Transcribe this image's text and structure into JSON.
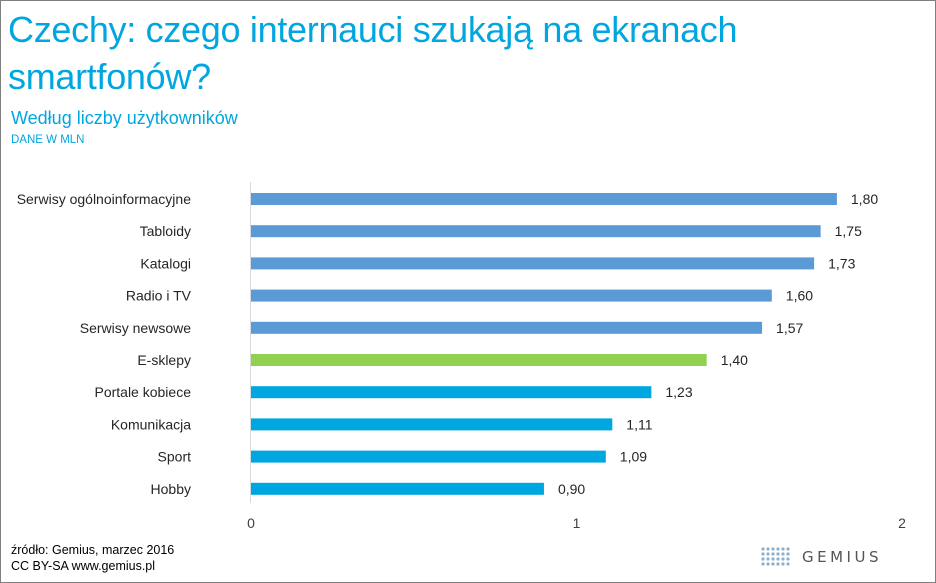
{
  "title": "Czechy: czego internauci szukają na ekranach smartfonów?",
  "subtitle": "Według liczby użytkowników",
  "units": "DANE W MLN",
  "source_line1": "źródło: Gemius, marzec 2016",
  "source_line2": "CC BY-SA www.gemius.pl",
  "logo_text": "GEMIUS",
  "colors": {
    "accent": "#00a6e0",
    "bar_top": "#5b9bd5",
    "bar_highlight": "#92d050",
    "bar_bottom": "#00a6e0"
  },
  "chart_data": {
    "type": "bar",
    "orientation": "horizontal",
    "categories": [
      "Serwisy ogólnoinformacyjne",
      "Tabloidy",
      "Katalogi",
      "Radio i TV",
      "Serwisy newsowe",
      "E-sklepy",
      "Portale kobiece",
      "Komunikacja",
      "Sport",
      "Hobby"
    ],
    "values": [
      1.8,
      1.75,
      1.73,
      1.6,
      1.57,
      1.4,
      1.23,
      1.11,
      1.09,
      0.9
    ],
    "value_labels": [
      "1,80",
      "1,75",
      "1,73",
      "1,60",
      "1,57",
      "1,40",
      "1,23",
      "1,11",
      "1,09",
      "0,90"
    ],
    "bar_colors": [
      "#5b9bd5",
      "#5b9bd5",
      "#5b9bd5",
      "#5b9bd5",
      "#5b9bd5",
      "#92d050",
      "#00a6e0",
      "#00a6e0",
      "#00a6e0",
      "#00a6e0"
    ],
    "x_ticks": [
      "0",
      "1",
      "2"
    ],
    "xlim": [
      0,
      2
    ],
    "grid": false
  }
}
